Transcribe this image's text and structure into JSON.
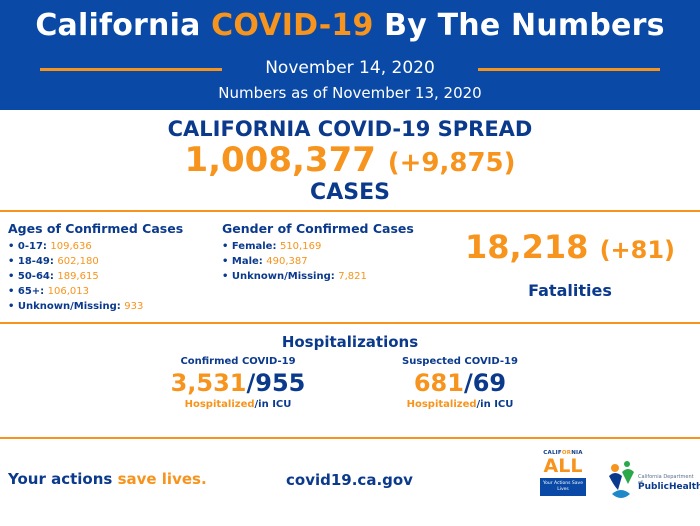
{
  "header": {
    "title_part1": "California ",
    "title_highlight": "COVID-19",
    "title_part2": " By The Numbers",
    "date": "November 14, 2020",
    "as_of": "Numbers as of November 13, 2020"
  },
  "spread": {
    "title": "CALIFORNIA COVID-19 SPREAD",
    "cases": "1,008,377",
    "cases_delta": "(+9,875)",
    "cases_label": "CASES"
  },
  "ages": {
    "heading": "Ages of Confirmed Cases",
    "items": [
      {
        "label": "• 0-17: ",
        "value": "109,636"
      },
      {
        "label": "• 18-49: ",
        "value": "602,180"
      },
      {
        "label": "• 50-64: ",
        "value": "189,615"
      },
      {
        "label": "• 65+: ",
        "value": "106,013"
      },
      {
        "label": "• Unknown/Missing: ",
        "value": "933"
      }
    ]
  },
  "gender": {
    "heading": "Gender of Confirmed Cases",
    "items": [
      {
        "label": "• Female: ",
        "value": "510,169"
      },
      {
        "label": "• Male: ",
        "value": "490,387"
      },
      {
        "label": "• Unknown/Missing: ",
        "value": "7,821"
      }
    ]
  },
  "fatalities": {
    "number": "18,218",
    "delta": "(+81)",
    "label": "Fatalities"
  },
  "hospitalizations": {
    "title": "Hospitalizations",
    "confirmed": {
      "label": "Confirmed COVID-19",
      "hospitalized": "3,531",
      "icu": "/955",
      "sub_a": "Hospitalized",
      "sub_b": "/in ICU"
    },
    "suspected": {
      "label": "Suspected COVID-19",
      "hospitalized": "681",
      "icu": "/69",
      "sub_a": "Hospitalized",
      "sub_b": "/in ICU"
    }
  },
  "footer": {
    "tagline_a": "Your actions ",
    "tagline_b": "save lives.",
    "website": "covid19.ca.gov",
    "ca_all": {
      "small_a": "CALIF",
      "small_b": "OR",
      "small_c": "NIA",
      "big": "ALL",
      "box_text": "Your Actions Save Lives"
    },
    "cdph": {
      "dept": "California Department of",
      "name": "PublicHealth"
    }
  },
  "colors": {
    "navy": "#0b3a8c",
    "header_blue": "#0a4aa6",
    "orange": "#f7941d"
  }
}
